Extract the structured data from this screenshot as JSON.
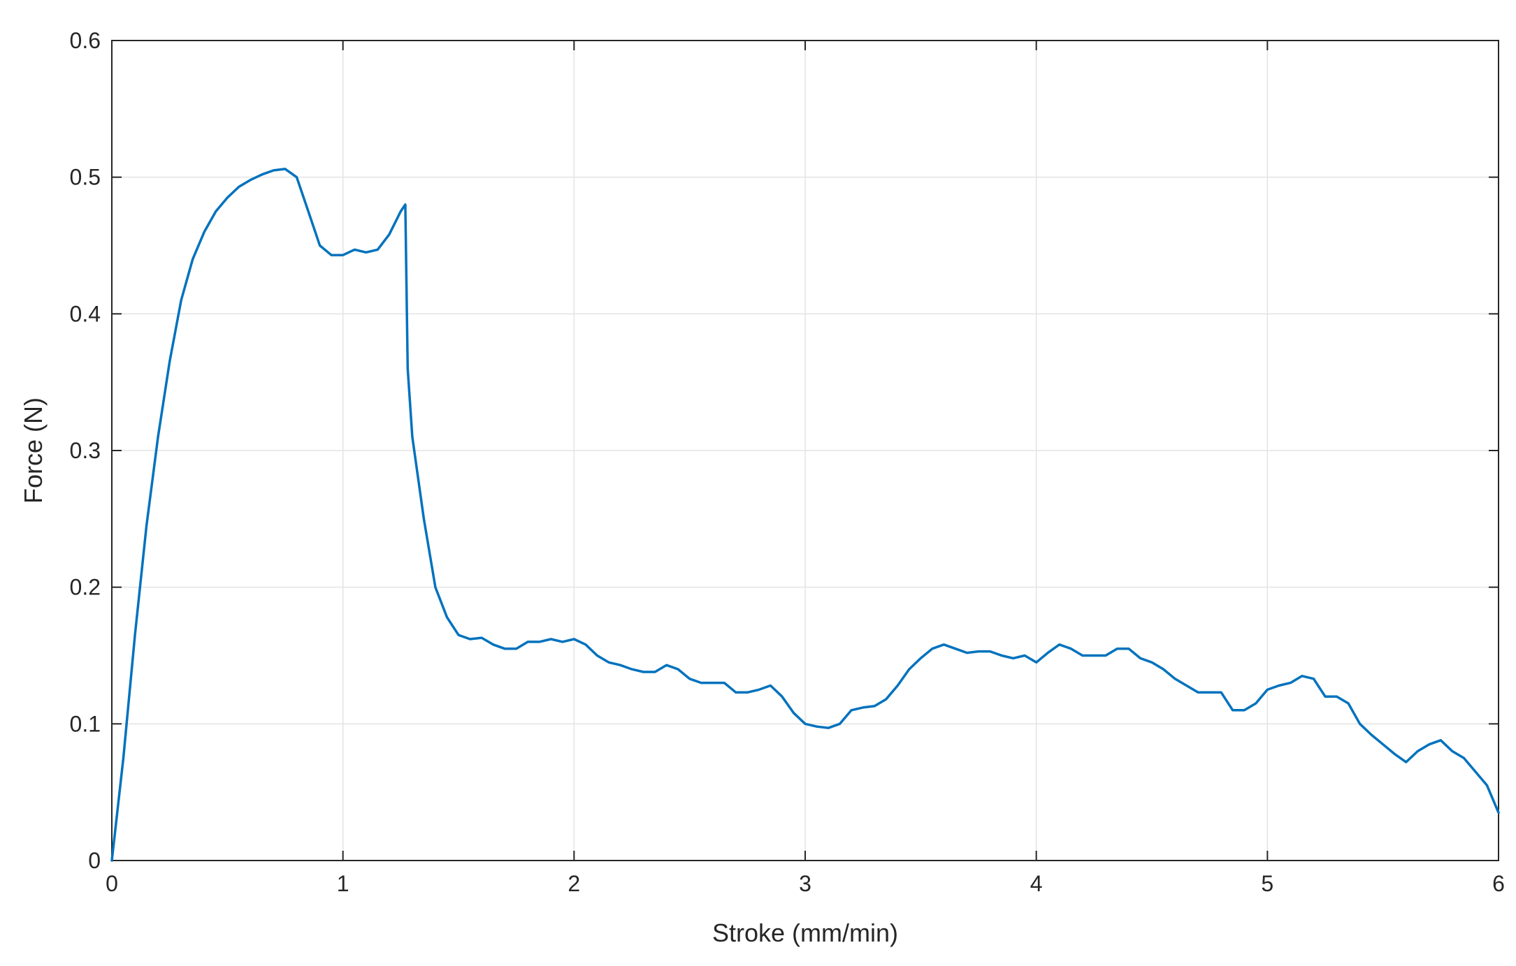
{
  "chart_data": {
    "type": "line",
    "xlabel": "Stroke (mm/min)",
    "ylabel": "Force (N)",
    "xlim": [
      0,
      6
    ],
    "ylim": [
      0,
      0.6
    ],
    "xticks": [
      "0",
      "1",
      "2",
      "3",
      "4",
      "5",
      "6"
    ],
    "yticks": [
      "0",
      "0.1",
      "0.2",
      "0.3",
      "0.4",
      "0.5",
      "0.6"
    ],
    "grid": true,
    "series": [
      {
        "color": "#0072BD",
        "x": [
          0,
          0.05,
          0.1,
          0.15,
          0.2,
          0.25,
          0.3,
          0.35,
          0.4,
          0.45,
          0.5,
          0.55,
          0.6,
          0.65,
          0.7,
          0.75,
          0.8,
          0.85,
          0.9,
          0.95,
          1.0,
          1.05,
          1.1,
          1.15,
          1.2,
          1.25,
          1.27,
          1.28,
          1.3,
          1.35,
          1.4,
          1.45,
          1.5,
          1.55,
          1.6,
          1.65,
          1.7,
          1.75,
          1.8,
          1.85,
          1.9,
          1.95,
          2.0,
          2.05,
          2.1,
          2.15,
          2.2,
          2.25,
          2.3,
          2.35,
          2.4,
          2.45,
          2.5,
          2.55,
          2.6,
          2.65,
          2.7,
          2.75,
          2.8,
          2.85,
          2.9,
          2.95,
          3.0,
          3.05,
          3.1,
          3.15,
          3.2,
          3.25,
          3.3,
          3.35,
          3.4,
          3.45,
          3.5,
          3.55,
          3.6,
          3.65,
          3.7,
          3.75,
          3.8,
          3.85,
          3.9,
          3.95,
          4.0,
          4.05,
          4.1,
          4.15,
          4.2,
          4.25,
          4.3,
          4.35,
          4.4,
          4.45,
          4.5,
          4.55,
          4.6,
          4.65,
          4.7,
          4.75,
          4.8,
          4.85,
          4.9,
          4.95,
          5.0,
          5.05,
          5.1,
          5.15,
          5.2,
          5.25,
          5.3,
          5.35,
          5.4,
          5.45,
          5.5,
          5.55,
          5.6,
          5.65,
          5.7,
          5.75,
          5.8,
          5.85,
          5.9,
          5.95,
          6.0
        ],
        "y": [
          0,
          0.075,
          0.165,
          0.245,
          0.31,
          0.365,
          0.41,
          0.44,
          0.46,
          0.475,
          0.485,
          0.493,
          0.498,
          0.502,
          0.505,
          0.506,
          0.5,
          0.475,
          0.45,
          0.443,
          0.443,
          0.447,
          0.445,
          0.447,
          0.458,
          0.475,
          0.48,
          0.36,
          0.31,
          0.25,
          0.2,
          0.178,
          0.165,
          0.162,
          0.163,
          0.158,
          0.155,
          0.155,
          0.16,
          0.16,
          0.162,
          0.16,
          0.162,
          0.158,
          0.15,
          0.145,
          0.143,
          0.14,
          0.138,
          0.138,
          0.143,
          0.14,
          0.133,
          0.13,
          0.13,
          0.13,
          0.123,
          0.123,
          0.125,
          0.128,
          0.12,
          0.108,
          0.1,
          0.098,
          0.097,
          0.1,
          0.11,
          0.112,
          0.113,
          0.118,
          0.128,
          0.14,
          0.148,
          0.155,
          0.158,
          0.155,
          0.152,
          0.153,
          0.153,
          0.15,
          0.148,
          0.15,
          0.145,
          0.152,
          0.158,
          0.155,
          0.15,
          0.15,
          0.15,
          0.155,
          0.155,
          0.148,
          0.145,
          0.14,
          0.133,
          0.128,
          0.123,
          0.123,
          0.123,
          0.11,
          0.11,
          0.115,
          0.125,
          0.128,
          0.13,
          0.135,
          0.133,
          0.12,
          0.12,
          0.115,
          0.1,
          0.092,
          0.085,
          0.078,
          0.072,
          0.08,
          0.085,
          0.088,
          0.08,
          0.075,
          0.065,
          0.055,
          0.035
        ]
      }
    ]
  }
}
